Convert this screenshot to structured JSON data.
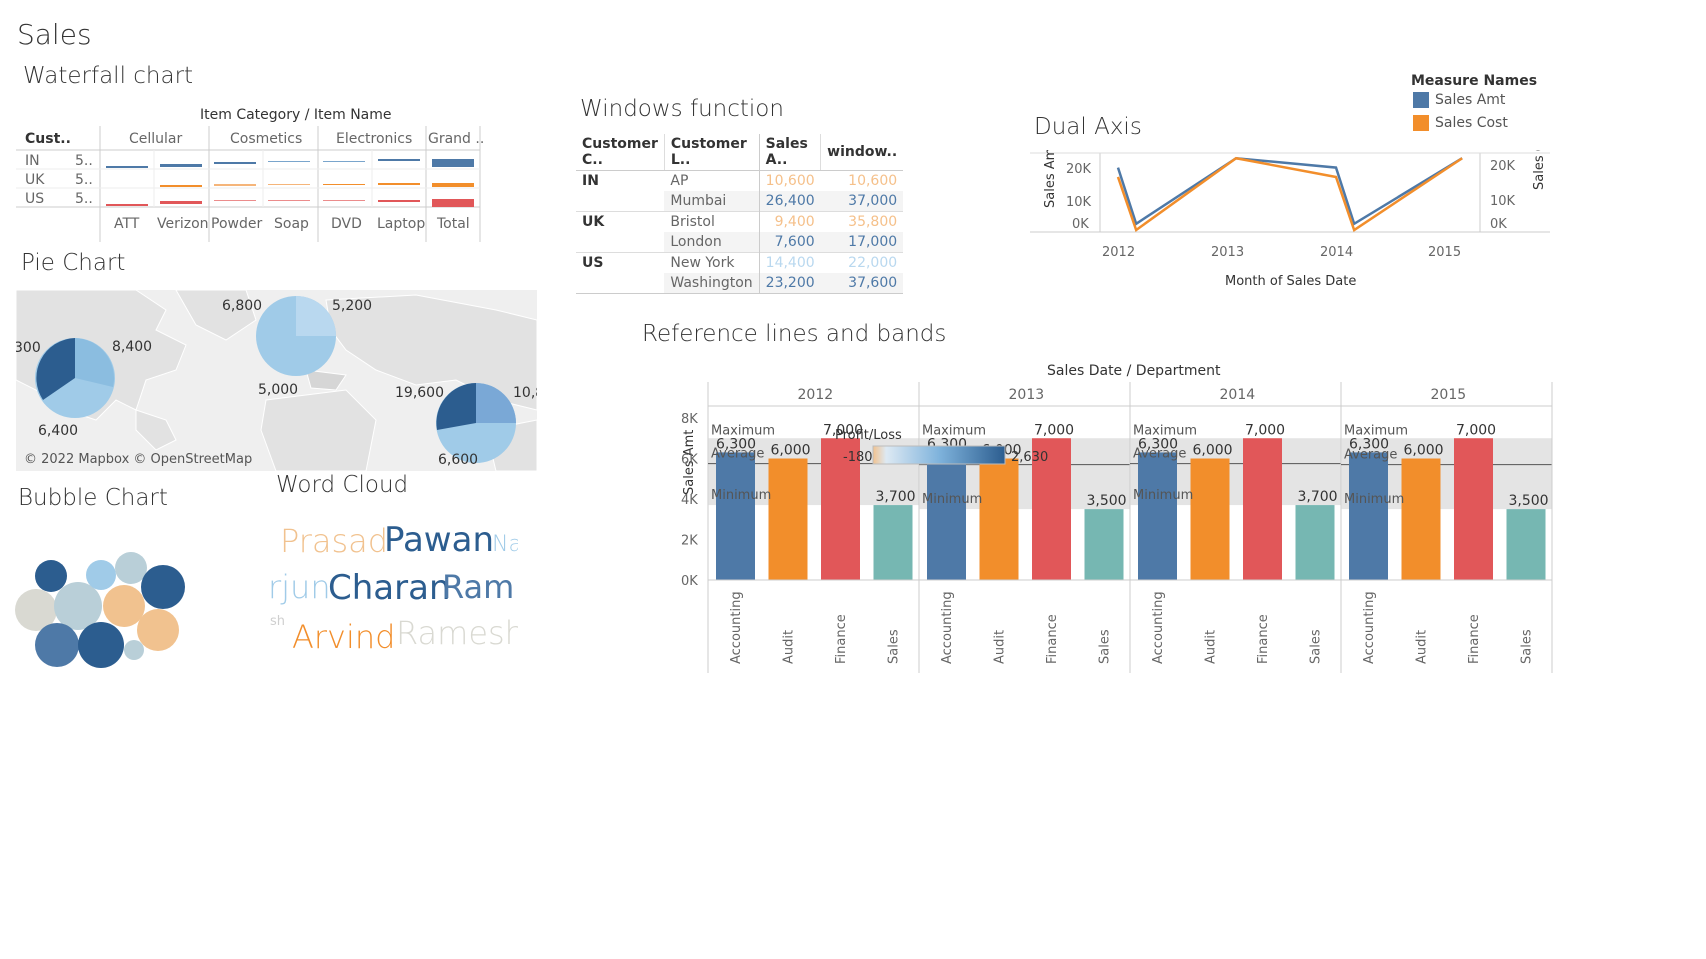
{
  "page": {
    "title": "Sales"
  },
  "colors": {
    "blue": "#4e79a7",
    "orange": "#f28e2b",
    "red": "#e15759",
    "teal": "#76b7b2",
    "dark_blue": "#2c5d8f",
    "light_blue": "#a0cbe8",
    "sand": "#f1c28f",
    "grey": "#d9d9d2"
  },
  "waterfall": {
    "title": "Waterfall chart",
    "header": "Item Category  /  Item Name",
    "row_header": "Cust..",
    "categories": [
      "Cellular",
      "Cosmetics",
      "Electronics",
      "Grand .."
    ],
    "items": [
      "ATT",
      "Verizon",
      "Powder",
      "Soap",
      "DVD",
      "Laptop",
      "Total"
    ],
    "rows": [
      {
        "label": "IN",
        "value": "5.."
      },
      {
        "label": "UK",
        "value": "5.."
      },
      {
        "label": "US",
        "value": "5.."
      }
    ]
  },
  "windows": {
    "title": "Windows function",
    "columns": [
      "Customer C..",
      "Customer L..",
      "Sales A..",
      "window.."
    ],
    "groups": [
      {
        "country": "IN",
        "rows": [
          {
            "city": "AP",
            "sales": "10,600",
            "window": "10,600",
            "tone": "orange"
          },
          {
            "city": "Mumbai",
            "sales": "26,400",
            "window": "37,000",
            "tone": "blue"
          }
        ]
      },
      {
        "country": "UK",
        "rows": [
          {
            "city": "Bristol",
            "sales": "9,400",
            "window": "35,800",
            "tone": "orange"
          },
          {
            "city": "London",
            "sales": "7,600",
            "window": "17,000",
            "tone": "blue"
          }
        ]
      },
      {
        "country": "US",
        "rows": [
          {
            "city": "New York",
            "sales": "14,400",
            "window": "22,000",
            "tone": "light"
          },
          {
            "city": "Washington",
            "sales": "23,200",
            "window": "37,600",
            "tone": "blue"
          }
        ]
      }
    ]
  },
  "dual_axis": {
    "title": "Dual Axis",
    "legend_title": "Measure Names",
    "legend": [
      {
        "name": "Sales Amt",
        "color": "#4e79a7"
      },
      {
        "name": "Sales Cost",
        "color": "#f28e2b"
      }
    ],
    "left_axis_label": "Sales Amt",
    "right_axis_label": "Sales Cost",
    "x_label": "Month of Sales Date",
    "x_ticks": [
      "2012",
      "2013",
      "2014",
      "2015"
    ],
    "y_ticks": [
      "20K",
      "10K",
      "0K"
    ],
    "y2_ticks": [
      "20K",
      "10K",
      "0K"
    ]
  },
  "pie": {
    "title": "Pie Chart",
    "attribution": "© 2022 Mapbox © OpenStreetMap",
    "labels": [
      "300",
      "8,400",
      "6,400",
      "6,800",
      "5,200",
      "5,000",
      "19,600",
      "10,8",
      "6,600"
    ]
  },
  "bubble": {
    "title": "Bubble Chart"
  },
  "word_cloud": {
    "title": "Word Cloud",
    "words": [
      {
        "text": "Prasad",
        "color": "#f1c28f"
      },
      {
        "text": "Pawan",
        "color": "#2c5d8f"
      },
      {
        "text": "Na",
        "color": "#a0cbe8"
      },
      {
        "text": "rjun",
        "color": "#a0cbe8"
      },
      {
        "text": "Charan",
        "color": "#2c5d8f"
      },
      {
        "text": "Ram",
        "color": "#4e79a7"
      },
      {
        "text": "sh",
        "color": "#cfcfcf"
      },
      {
        "text": "Arvind",
        "color": "#f28e2b"
      },
      {
        "text": "Ramesh",
        "color": "#d9d9d2"
      }
    ]
  },
  "reference": {
    "title": "Reference lines and bands",
    "header": "Sales Date  /  Department",
    "y_label": "Sales Amt",
    "y_ticks": [
      "8K",
      "6K",
      "4K",
      "2K",
      "0K"
    ],
    "ref_labels": {
      "max": "Maximum",
      "avg": "Average",
      "min": "Minimum"
    },
    "legend": {
      "title": "Profit/Loss",
      "min": "-180",
      "max": "2,630"
    }
  },
  "chart_data": [
    {
      "type": "line",
      "title": "Dual Axis",
      "xlabel": "Month of Sales Date",
      "ylabel": "Sales Amt",
      "y2label": "Sales Cost",
      "x": [
        "2012-01",
        "2012-03",
        "2013-02",
        "2014-01",
        "2014-03",
        "2015-03"
      ],
      "series": [
        {
          "name": "Sales Amt",
          "values": [
            20000,
            2000,
            23000,
            20000,
            2000,
            23000
          ]
        },
        {
          "name": "Sales Cost",
          "values": [
            17000,
            0,
            23000,
            17000,
            0,
            23000
          ]
        }
      ],
      "ylim": [
        0,
        25000
      ]
    },
    {
      "type": "bar",
      "title": "Reference lines and bands",
      "xlabel": "Sales Date / Department",
      "ylabel": "Sales Amt",
      "ylim": [
        0,
        8000
      ],
      "years": [
        "2012",
        "2013",
        "2014",
        "2015"
      ],
      "categories": [
        "Accounting",
        "Audit",
        "Finance",
        "Sales"
      ],
      "series": [
        {
          "name": "2012",
          "values": [
            6300,
            6000,
            7000,
            3700
          ]
        },
        {
          "name": "2013",
          "values": [
            6300,
            6000,
            7000,
            3500
          ]
        },
        {
          "name": "2014",
          "values": [
            6300,
            6000,
            7000,
            3700
          ]
        },
        {
          "name": "2015",
          "values": [
            6300,
            6000,
            7000,
            3500
          ]
        }
      ],
      "data_labels": [
        "6,300",
        "6,000",
        "7,000",
        "3,700",
        "3,500"
      ]
    }
  ]
}
